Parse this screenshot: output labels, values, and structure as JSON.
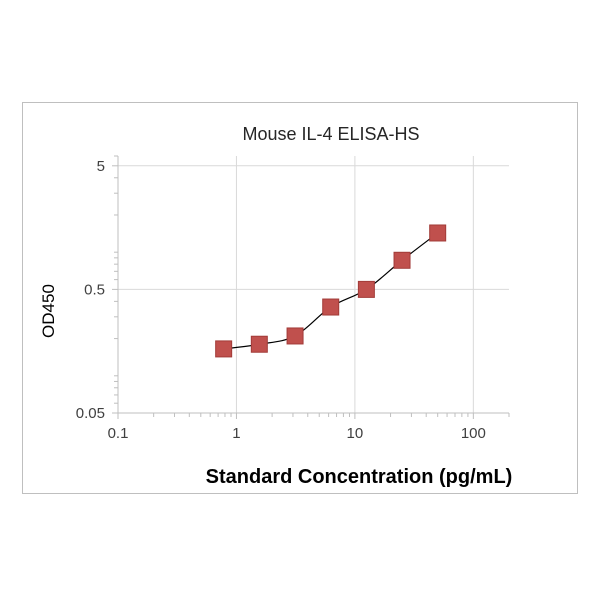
{
  "chart_data": {
    "type": "scatter",
    "title": "Mouse IL-4 ELISA-HS",
    "xlabel": "Standard Concentration (pg/mL)",
    "ylabel": "OD450",
    "xscale": "log",
    "yscale": "log",
    "xlim": [
      0.1,
      200
    ],
    "ylim": [
      0.05,
      6
    ],
    "x_ticks": [
      0.1,
      1,
      10,
      100
    ],
    "x_tick_labels": [
      "0.1",
      "1",
      "10",
      "100"
    ],
    "y_ticks": [
      0.05,
      0.5,
      5
    ],
    "y_tick_labels": [
      "0.05",
      "0.5",
      "5"
    ],
    "grid": true,
    "legend": "none",
    "marker_color": "#c0504d",
    "marker_edge_color": "#a23b38",
    "curve_color": "#000000",
    "series": [
      {
        "x": [
          0.78,
          1.56,
          3.125,
          6.25,
          12.5,
          25,
          50
        ],
        "y": [
          0.165,
          0.18,
          0.21,
          0.36,
          0.5,
          0.86,
          1.43
        ]
      }
    ],
    "fit_curve": "smooth fit through points"
  }
}
